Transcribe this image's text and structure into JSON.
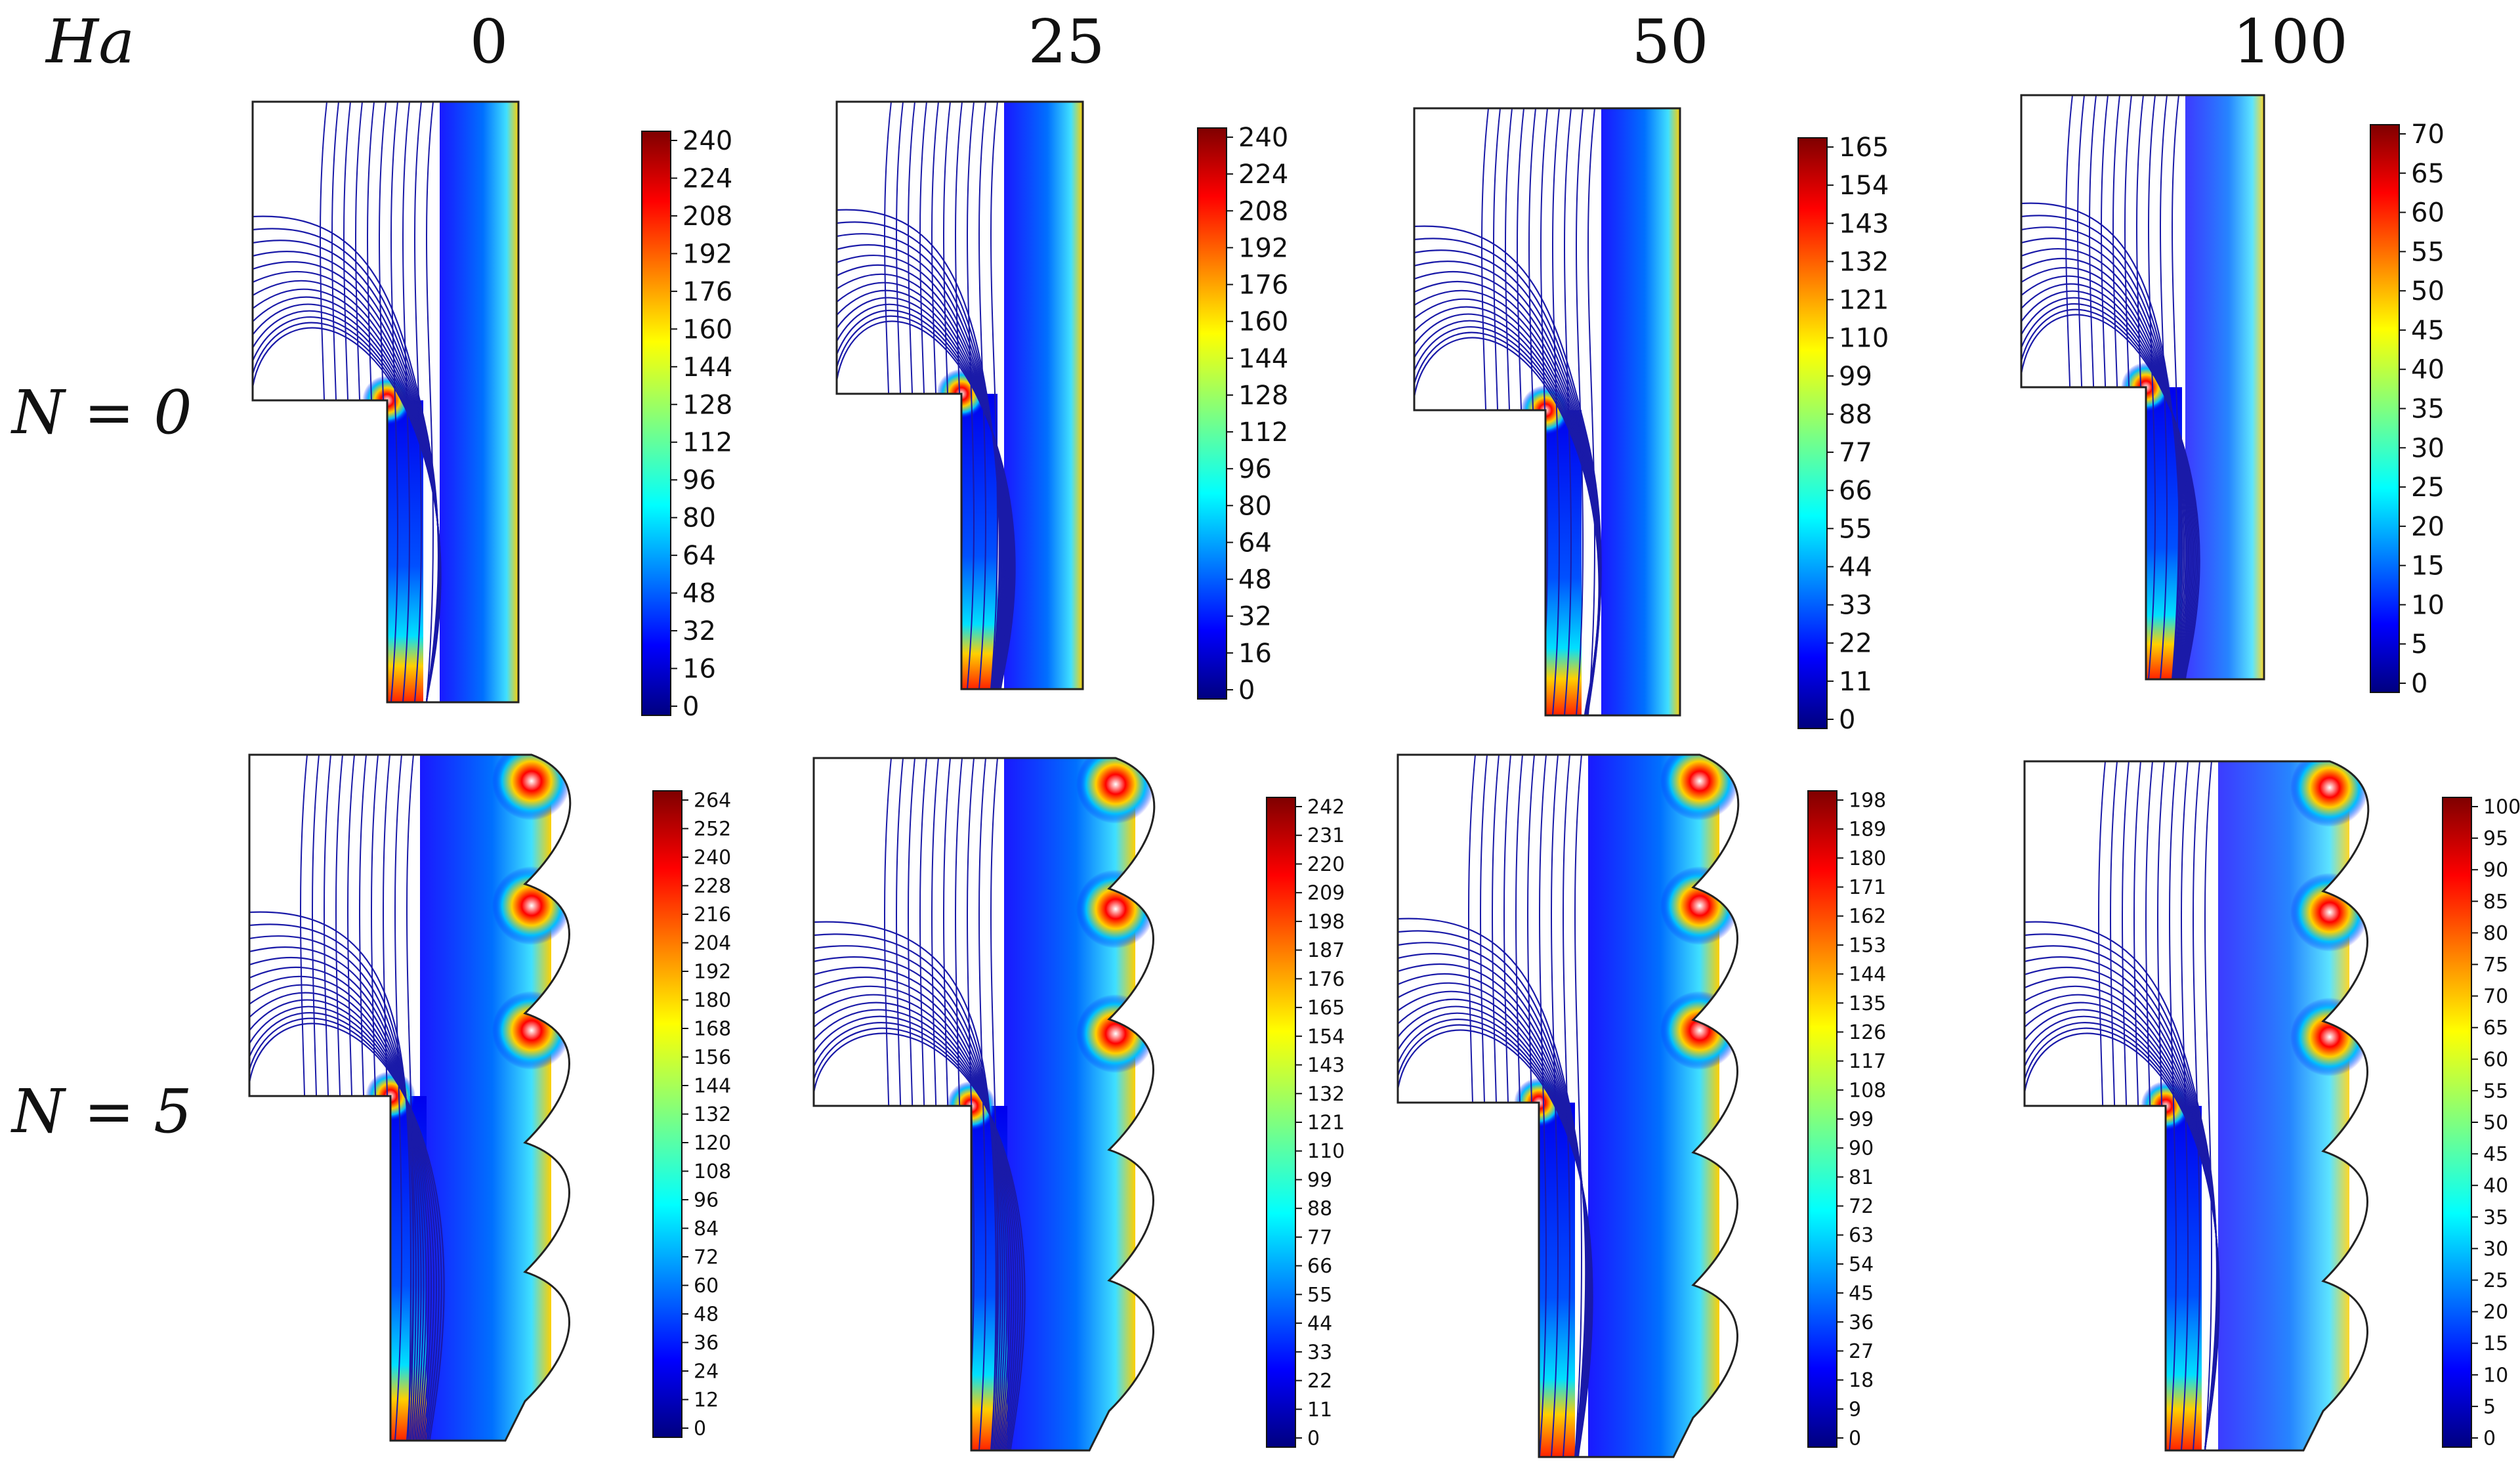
{
  "header": {
    "ha_label": "Ha"
  },
  "columns": [
    {
      "value": "0"
    },
    {
      "value": "25"
    },
    {
      "value": "50"
    },
    {
      "value": "100"
    }
  ],
  "rows": [
    {
      "label": "N = 0"
    },
    {
      "label": "N = 5"
    }
  ],
  "colorbars": [
    {
      "ticks": [
        "240",
        "224",
        "208",
        "192",
        "176",
        "160",
        "144",
        "128",
        "112",
        "96",
        "80",
        "64",
        "48",
        "32",
        "16",
        "0"
      ]
    },
    {
      "ticks": [
        "240",
        "224",
        "208",
        "192",
        "176",
        "160",
        "144",
        "128",
        "112",
        "96",
        "80",
        "64",
        "48",
        "32",
        "16",
        "0"
      ]
    },
    {
      "ticks": [
        "165",
        "154",
        "143",
        "132",
        "121",
        "110",
        "99",
        "88",
        "77",
        "66",
        "55",
        "44",
        "33",
        "22",
        "11",
        "0"
      ]
    },
    {
      "ticks": [
        "70",
        "65",
        "60",
        "55",
        "50",
        "45",
        "40",
        "35",
        "30",
        "25",
        "20",
        "15",
        "10",
        "5",
        "0"
      ]
    },
    {
      "ticks": [
        "264",
        "252",
        "240",
        "228",
        "216",
        "204",
        "192",
        "180",
        "168",
        "156",
        "144",
        "132",
        "120",
        "108",
        "96",
        "84",
        "72",
        "60",
        "48",
        "36",
        "24",
        "12",
        "0"
      ]
    },
    {
      "ticks": [
        "242",
        "231",
        "220",
        "209",
        "198",
        "187",
        "176",
        "165",
        "154",
        "143",
        "132",
        "121",
        "110",
        "99",
        "88",
        "77",
        "66",
        "55",
        "44",
        "33",
        "22",
        "11",
        "0"
      ]
    },
    {
      "ticks": [
        "198",
        "189",
        "180",
        "171",
        "162",
        "153",
        "144",
        "135",
        "126",
        "117",
        "108",
        "99",
        "90",
        "81",
        "72",
        "63",
        "54",
        "45",
        "36",
        "27",
        "18",
        "9",
        "0"
      ]
    },
    {
      "ticks": [
        "100",
        "95",
        "90",
        "85",
        "80",
        "75",
        "70",
        "65",
        "60",
        "55",
        "50",
        "45",
        "40",
        "35",
        "30",
        "25",
        "20",
        "15",
        "10",
        "5",
        "0"
      ]
    }
  ],
  "colors": {
    "jet": [
      "#00007f",
      "#0000ff",
      "#007fff",
      "#00ffff",
      "#7fff7f",
      "#ffff00",
      "#ff7f00",
      "#ff0000",
      "#7f0000"
    ],
    "contour": "#1a1aa8"
  }
}
